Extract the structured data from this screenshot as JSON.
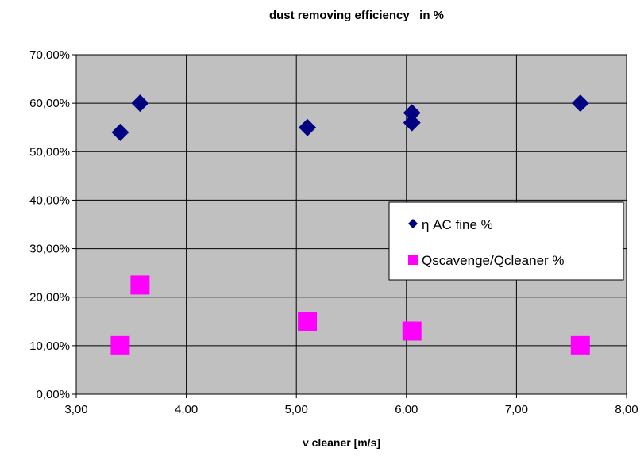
{
  "chart_data": {
    "type": "scatter",
    "title": "dust removing efficiency   in %",
    "xlabel": "v cleaner [m/s]",
    "ylabel": "",
    "xlim": [
      3.0,
      8.0
    ],
    "ylim": [
      0.0,
      0.7
    ],
    "x_ticks": [
      3,
      4,
      5,
      6,
      7,
      8
    ],
    "x_tick_labels": [
      "3,00",
      "4,00",
      "5,00",
      "6,00",
      "7,00",
      "8,00"
    ],
    "y_ticks": [
      0.0,
      0.1,
      0.2,
      0.3,
      0.4,
      0.5,
      0.6,
      0.7
    ],
    "y_tick_labels": [
      "0,00%",
      "10,00%",
      "20,00%",
      "30,00%",
      "40,00%",
      "50,00%",
      "60,00%",
      "70,00%"
    ],
    "grid": true,
    "plot_background": "#c0c0c0",
    "legend_position": "right",
    "series": [
      {
        "name": "η AC fine %",
        "marker": "diamond",
        "color": "#000080",
        "points": [
          {
            "x": 3.4,
            "y": 0.54
          },
          {
            "x": 3.58,
            "y": 0.6
          },
          {
            "x": 5.1,
            "y": 0.55
          },
          {
            "x": 6.05,
            "y": 0.58
          },
          {
            "x": 6.05,
            "y": 0.56
          },
          {
            "x": 7.58,
            "y": 0.6
          }
        ]
      },
      {
        "name": "Qscavenge/Qcleaner %",
        "marker": "square",
        "color": "#ff00ff",
        "points": [
          {
            "x": 3.4,
            "y": 0.1
          },
          {
            "x": 3.58,
            "y": 0.225
          },
          {
            "x": 5.1,
            "y": 0.15
          },
          {
            "x": 6.05,
            "y": 0.13
          },
          {
            "x": 7.58,
            "y": 0.1
          }
        ]
      }
    ]
  }
}
